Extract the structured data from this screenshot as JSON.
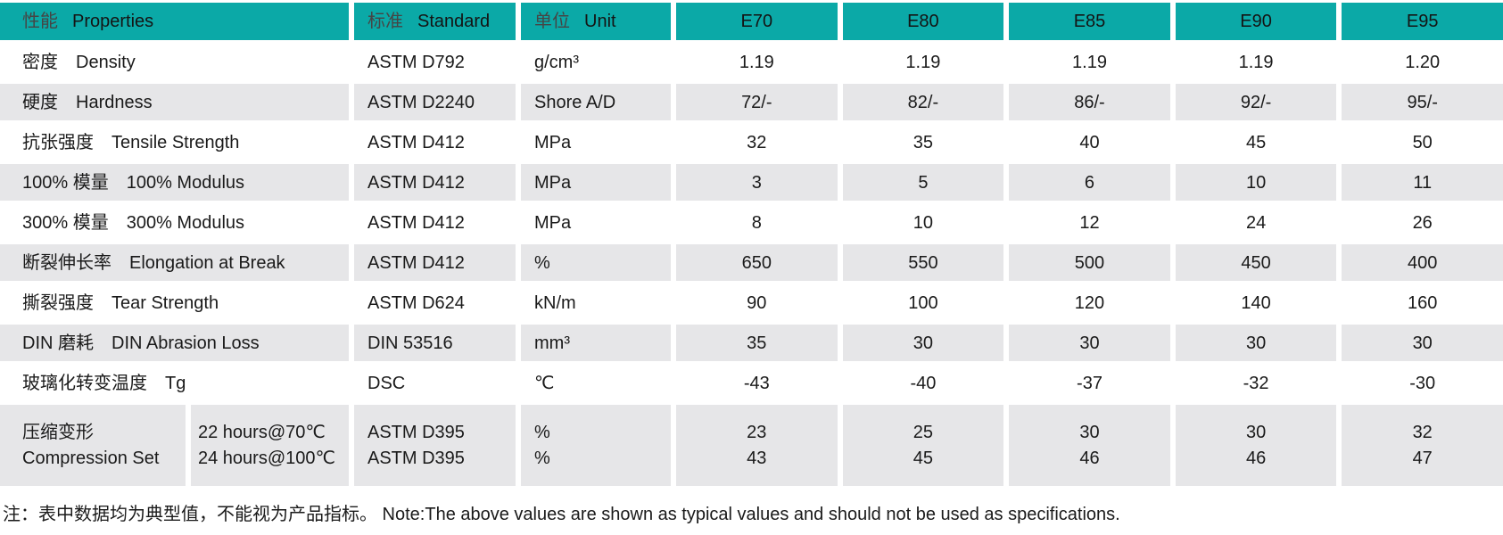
{
  "colors": {
    "header_bg": "#0ba9a7",
    "row_alt_bg": "#e6e6e8",
    "text": "#1a1a1a"
  },
  "table": {
    "header": {
      "properties": {
        "zh": "性能",
        "en": "Properties"
      },
      "standard": {
        "zh": "标准",
        "en": "Standard"
      },
      "unit": {
        "zh": "单位",
        "en": "Unit"
      },
      "grades": [
        "E70",
        "E80",
        "E85",
        "E90",
        "E95"
      ]
    },
    "rows": [
      {
        "zh": "密度",
        "en": "Density",
        "standard": "ASTM D792",
        "unit": "g/cm³",
        "values": [
          "1.19",
          "1.19",
          "1.19",
          "1.19",
          "1.20"
        ]
      },
      {
        "zh": "硬度",
        "en": "Hardness",
        "standard": "ASTM D2240",
        "unit": "Shore A/D",
        "values": [
          "72/-",
          "82/-",
          "86/-",
          "92/-",
          "95/-"
        ]
      },
      {
        "zh": "抗张强度",
        "en": "Tensile Strength",
        "standard": "ASTM D412",
        "unit": "MPa",
        "values": [
          "32",
          "35",
          "40",
          "45",
          "50"
        ]
      },
      {
        "zh": "100% 模量",
        "en": "100% Modulus",
        "standard": "ASTM D412",
        "unit": "MPa",
        "values": [
          "3",
          "5",
          "6",
          "10",
          "11"
        ]
      },
      {
        "zh": "300% 模量",
        "en": "300% Modulus",
        "standard": "ASTM D412",
        "unit": "MPa",
        "values": [
          "8",
          "10",
          "12",
          "24",
          "26"
        ]
      },
      {
        "zh": "断裂伸长率",
        "en": "Elongation at Break",
        "standard": "ASTM D412",
        "unit": "%",
        "values": [
          "650",
          "550",
          "500",
          "450",
          "400"
        ]
      },
      {
        "zh": "撕裂强度",
        "en": "Tear Strength",
        "standard": "ASTM D624",
        "unit": "kN/m",
        "values": [
          "90",
          "100",
          "120",
          "140",
          "160"
        ]
      },
      {
        "zh": "DIN 磨耗",
        "en": "DIN Abrasion Loss",
        "standard": "DIN 53516",
        "unit": "mm³",
        "values": [
          "35",
          "30",
          "30",
          "30",
          "30"
        ]
      },
      {
        "zh": "玻璃化转变温度",
        "en": "Tg",
        "standard": "DSC",
        "unit": "℃",
        "values": [
          "-43",
          "-40",
          "-37",
          "-32",
          "-30"
        ]
      }
    ],
    "compression": {
      "zh": "压缩变形",
      "en": "Compression Set",
      "conditions": [
        "22 hours@70℃",
        "24 hours@100℃"
      ],
      "standards": [
        "ASTM D395",
        "ASTM D395"
      ],
      "units": [
        "%",
        "%"
      ],
      "values": [
        [
          "23",
          "43"
        ],
        [
          "25",
          "45"
        ],
        [
          "30",
          "46"
        ],
        [
          "30",
          "46"
        ],
        [
          "32",
          "47"
        ]
      ]
    },
    "note": "注：表中数据均为典型值，不能视为产品指标。 Note:The above values are shown as typical values and should not be used as specifications."
  }
}
